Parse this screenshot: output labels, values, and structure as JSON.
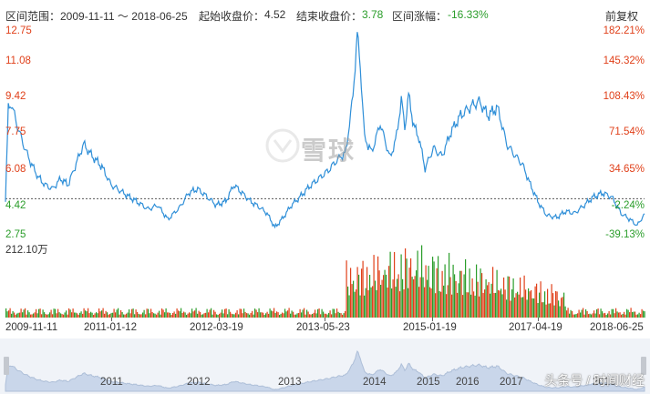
{
  "info": {
    "range_label": "区间范围：2009-11-11 ～ 2018-06-25",
    "start_label": "起始收盘价：",
    "start_value": "4.52",
    "end_label": "结束收盘价：",
    "end_value": "3.78",
    "change_label": "区间涨幅：",
    "change_value": "-16.33%",
    "adjust_button": "前复权"
  },
  "watermark_text": "雪球",
  "volume_label": "212.10万",
  "credit": "头条号 / 时间财经",
  "colors": {
    "up": "#e0401a",
    "down": "#2a9d2a",
    "line": "#2f8fd8"
  },
  "chart_data": {
    "type": "line",
    "x_axis_dates": [
      "2009-11-11",
      "2011-01-12",
      "2012-03-19",
      "2013-05-23",
      "2015-01-19",
      "2017-04-19",
      "2018-06-25"
    ],
    "navigator_years": [
      "2011",
      "2012",
      "2013",
      "2014",
      "2015",
      "2016",
      "2017",
      "2018"
    ],
    "y_left_ticks": [
      "12.75",
      "11.08",
      "9.42",
      "7.75",
      "6.08",
      "4.42",
      "2.75"
    ],
    "y_right_ticks": [
      "182.21%",
      "145.32%",
      "108.43%",
      "71.54%",
      "34.65%",
      "-2.24%",
      "-39.13%"
    ],
    "ylim": [
      2.75,
      12.75
    ],
    "reference_price": 4.52,
    "price_series": [
      [
        "2009-11-11",
        4.52
      ],
      [
        "2009-11-25",
        8.9
      ],
      [
        "2009-12-10",
        9.2
      ],
      [
        "2010-01-05",
        8.2
      ],
      [
        "2010-02-10",
        7.1
      ],
      [
        "2010-03-15",
        6.3
      ],
      [
        "2010-04-20",
        5.6
      ],
      [
        "2010-05-25",
        5.2
      ],
      [
        "2010-07-01",
        5.0
      ],
      [
        "2010-08-10",
        5.5
      ],
      [
        "2010-09-15",
        5.2
      ],
      [
        "2010-10-20",
        6.1
      ],
      [
        "2010-12-01",
        7.2
      ],
      [
        "2011-01-12",
        6.6
      ],
      [
        "2011-03-01",
        6.1
      ],
      [
        "2011-04-15",
        5.2
      ],
      [
        "2011-06-01",
        4.9
      ],
      [
        "2011-07-15",
        4.6
      ],
      [
        "2011-09-01",
        4.3
      ],
      [
        "2011-10-15",
        4.0
      ],
      [
        "2011-12-01",
        4.2
      ],
      [
        "2012-01-20",
        3.5
      ],
      [
        "2012-03-19",
        4.1
      ],
      [
        "2012-05-01",
        4.8
      ],
      [
        "2012-06-15",
        5.0
      ],
      [
        "2012-08-01",
        4.6
      ],
      [
        "2012-09-15",
        4.2
      ],
      [
        "2012-11-01",
        4.4
      ],
      [
        "2012-12-10",
        5.2
      ],
      [
        "2013-01-20",
        4.8
      ],
      [
        "2013-03-01",
        4.4
      ],
      [
        "2013-04-15",
        4.1
      ],
      [
        "2013-05-23",
        3.8
      ],
      [
        "2013-06-30",
        3.1
      ],
      [
        "2013-08-10",
        3.6
      ],
      [
        "2013-09-20",
        4.2
      ],
      [
        "2013-11-01",
        4.6
      ],
      [
        "2013-12-15",
        5.1
      ],
      [
        "2014-02-01",
        5.5
      ],
      [
        "2014-03-20",
        5.9
      ],
      [
        "2014-05-01",
        6.4
      ],
      [
        "2014-06-15",
        6.8
      ],
      [
        "2014-07-20",
        9.6
      ],
      [
        "2014-08-10",
        12.6
      ],
      [
        "2014-08-25",
        11.0
      ],
      [
        "2014-09-15",
        7.5
      ],
      [
        "2014-10-20",
        6.8
      ],
      [
        "2014-12-01",
        8.2
      ],
      [
        "2015-01-19",
        6.5
      ],
      [
        "2015-02-20",
        7.6
      ],
      [
        "2015-03-15",
        9.4
      ],
      [
        "2015-04-01",
        8.0
      ],
      [
        "2015-04-20",
        9.6
      ],
      [
        "2015-05-15",
        8.1
      ],
      [
        "2015-06-10",
        7.5
      ],
      [
        "2015-07-10",
        6.0
      ],
      [
        "2015-08-20",
        7.0
      ],
      [
        "2015-10-01",
        6.6
      ],
      [
        "2015-11-15",
        7.8
      ],
      [
        "2016-01-01",
        8.6
      ],
      [
        "2016-02-15",
        9.0
      ],
      [
        "2016-04-01",
        9.3
      ],
      [
        "2016-05-15",
        8.6
      ],
      [
        "2016-07-01",
        9.0
      ],
      [
        "2016-08-15",
        7.2
      ],
      [
        "2016-09-20",
        6.7
      ],
      [
        "2016-11-01",
        6.2
      ],
      [
        "2016-12-10",
        5.2
      ],
      [
        "2017-01-20",
        4.3
      ],
      [
        "2017-03-01",
        3.7
      ],
      [
        "2017-04-19",
        3.6
      ],
      [
        "2017-06-01",
        3.9
      ],
      [
        "2017-07-15",
        3.8
      ],
      [
        "2017-09-01",
        4.2
      ],
      [
        "2017-10-15",
        4.6
      ],
      [
        "2017-12-01",
        4.8
      ],
      [
        "2018-01-15",
        4.6
      ],
      [
        "2018-03-01",
        3.8
      ],
      [
        "2018-04-15",
        3.5
      ],
      [
        "2018-05-20",
        3.2
      ],
      [
        "2018-06-25",
        3.78
      ]
    ],
    "volume_max_label": "212.10万"
  }
}
